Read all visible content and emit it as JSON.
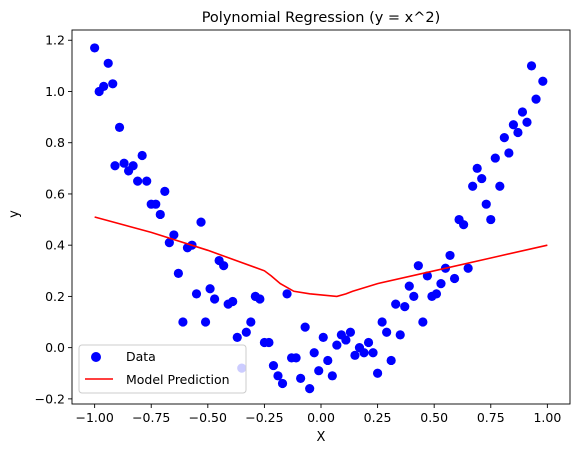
{
  "chart_data": {
    "type": "scatter",
    "title": "Polynomial Regression (y = x^2)",
    "xlabel": "X",
    "ylabel": "y",
    "xlim": [
      -1.1,
      1.1
    ],
    "ylim": [
      -0.22,
      1.24
    ],
    "xticks": [
      -1.0,
      -0.75,
      -0.5,
      -0.25,
      0.0,
      0.25,
      0.5,
      0.75,
      1.0
    ],
    "xtick_labels": [
      "−1.00",
      "−0.75",
      "−0.50",
      "−0.25",
      "0.00",
      "0.25",
      "0.50",
      "0.75",
      "1.00"
    ],
    "yticks": [
      -0.2,
      0.0,
      0.2,
      0.4,
      0.6,
      0.8,
      1.0,
      1.2
    ],
    "ytick_labels": [
      "−0.2",
      "0.0",
      "0.2",
      "0.4",
      "0.6",
      "0.8",
      "1.0",
      "1.2"
    ],
    "grid": false,
    "legend_position": "lower-left",
    "series": [
      {
        "name": "Data",
        "kind": "scatter",
        "color": "#0000ff",
        "points": [
          [
            -1.0,
            1.17
          ],
          [
            -0.98,
            1.0
          ],
          [
            -0.96,
            1.02
          ],
          [
            -0.94,
            1.11
          ],
          [
            -0.92,
            1.03
          ],
          [
            -0.91,
            0.71
          ],
          [
            -0.89,
            0.86
          ],
          [
            -0.87,
            0.72
          ],
          [
            -0.85,
            0.69
          ],
          [
            -0.83,
            0.71
          ],
          [
            -0.81,
            0.65
          ],
          [
            -0.79,
            0.75
          ],
          [
            -0.77,
            0.65
          ],
          [
            -0.75,
            0.56
          ],
          [
            -0.73,
            0.56
          ],
          [
            -0.71,
            0.52
          ],
          [
            -0.69,
            0.61
          ],
          [
            -0.67,
            0.41
          ],
          [
            -0.65,
            0.44
          ],
          [
            -0.63,
            0.29
          ],
          [
            -0.61,
            0.1
          ],
          [
            -0.59,
            0.39
          ],
          [
            -0.57,
            0.4
          ],
          [
            -0.55,
            0.21
          ],
          [
            -0.53,
            0.49
          ],
          [
            -0.51,
            0.1
          ],
          [
            -0.49,
            0.23
          ],
          [
            -0.47,
            0.19
          ],
          [
            -0.45,
            0.34
          ],
          [
            -0.43,
            0.32
          ],
          [
            -0.41,
            0.17
          ],
          [
            -0.39,
            0.18
          ],
          [
            -0.37,
            0.04
          ],
          [
            -0.35,
            -0.08
          ],
          [
            -0.33,
            0.06
          ],
          [
            -0.31,
            0.1
          ],
          [
            -0.29,
            0.2
          ],
          [
            -0.27,
            0.19
          ],
          [
            -0.25,
            0.02
          ],
          [
            -0.23,
            0.02
          ],
          [
            -0.21,
            -0.07
          ],
          [
            -0.19,
            -0.11
          ],
          [
            -0.17,
            -0.14
          ],
          [
            -0.15,
            0.21
          ],
          [
            -0.13,
            -0.04
          ],
          [
            -0.11,
            -0.04
          ],
          [
            -0.09,
            -0.12
          ],
          [
            -0.07,
            0.08
          ],
          [
            -0.05,
            -0.16
          ],
          [
            -0.03,
            -0.02
          ],
          [
            -0.01,
            -0.09
          ],
          [
            0.01,
            0.04
          ],
          [
            0.03,
            -0.05
          ],
          [
            0.05,
            -0.11
          ],
          [
            0.07,
            0.01
          ],
          [
            0.09,
            0.05
          ],
          [
            0.11,
            0.03
          ],
          [
            0.13,
            0.06
          ],
          [
            0.15,
            -0.03
          ],
          [
            0.17,
            0.0
          ],
          [
            0.19,
            -0.02
          ],
          [
            0.21,
            0.02
          ],
          [
            0.23,
            -0.02
          ],
          [
            0.25,
            -0.1
          ],
          [
            0.27,
            0.1
          ],
          [
            0.29,
            0.06
          ],
          [
            0.31,
            -0.05
          ],
          [
            0.33,
            0.17
          ],
          [
            0.35,
            0.05
          ],
          [
            0.37,
            0.16
          ],
          [
            0.39,
            0.24
          ],
          [
            0.41,
            0.2
          ],
          [
            0.43,
            0.32
          ],
          [
            0.45,
            0.1
          ],
          [
            0.47,
            0.28
          ],
          [
            0.49,
            0.2
          ],
          [
            0.51,
            0.21
          ],
          [
            0.53,
            0.25
          ],
          [
            0.55,
            0.31
          ],
          [
            0.57,
            0.36
          ],
          [
            0.59,
            0.27
          ],
          [
            0.61,
            0.5
          ],
          [
            0.63,
            0.48
          ],
          [
            0.65,
            0.31
          ],
          [
            0.67,
            0.63
          ],
          [
            0.69,
            0.7
          ],
          [
            0.71,
            0.66
          ],
          [
            0.73,
            0.56
          ],
          [
            0.75,
            0.5
          ],
          [
            0.77,
            0.74
          ],
          [
            0.79,
            0.63
          ],
          [
            0.81,
            0.82
          ],
          [
            0.83,
            0.76
          ],
          [
            0.85,
            0.87
          ],
          [
            0.87,
            0.84
          ],
          [
            0.89,
            0.92
          ],
          [
            0.91,
            0.88
          ],
          [
            0.93,
            1.1
          ],
          [
            0.95,
            0.97
          ],
          [
            0.98,
            1.04
          ]
        ]
      },
      {
        "name": "Model Prediction",
        "kind": "line",
        "color": "#ff0000",
        "points": [
          [
            -1.0,
            0.51
          ],
          [
            -0.75,
            0.45
          ],
          [
            -0.5,
            0.38
          ],
          [
            -0.25,
            0.3
          ],
          [
            -0.22,
            0.28
          ],
          [
            -0.18,
            0.25
          ],
          [
            -0.12,
            0.22
          ],
          [
            -0.05,
            0.21
          ],
          [
            0.07,
            0.2
          ],
          [
            0.11,
            0.21
          ],
          [
            0.14,
            0.22
          ],
          [
            0.25,
            0.25
          ],
          [
            0.5,
            0.3
          ],
          [
            0.75,
            0.35
          ],
          [
            1.0,
            0.4
          ]
        ]
      }
    ]
  }
}
